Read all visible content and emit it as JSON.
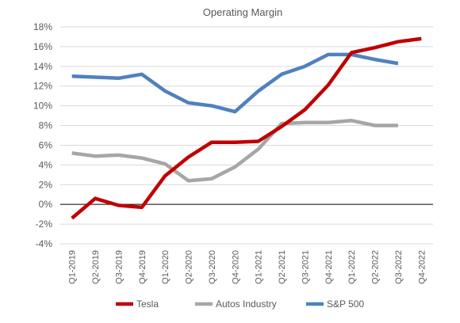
{
  "chart_data": {
    "type": "line",
    "title": "Operating Margin",
    "xlabel": "",
    "ylabel": "",
    "categories": [
      "Q1-2019",
      "Q2-2019",
      "Q3-2019",
      "Q4-2019",
      "Q1-2020",
      "Q2-2020",
      "Q3-2020",
      "Q4-2020",
      "Q1-2021",
      "Q2-2021",
      "Q3-2021",
      "Q4-2021",
      "Q1-2022",
      "Q2-2022",
      "Q3-2022",
      "Q4-2022"
    ],
    "yticks": [
      "-4%",
      "-2%",
      "0%",
      "2%",
      "4%",
      "6%",
      "8%",
      "10%",
      "12%",
      "14%",
      "16%",
      "18%"
    ],
    "ylim": [
      -4,
      18
    ],
    "ytick_step": 2,
    "unit": "%",
    "grid": true,
    "legend_position": "bottom",
    "series": [
      {
        "name": "Tesla",
        "color": "#c00000",
        "values": [
          -1.4,
          0.6,
          -0.1,
          -0.3,
          2.9,
          4.8,
          6.3,
          6.3,
          6.4,
          7.9,
          9.6,
          12.1,
          15.4,
          15.9,
          16.5,
          16.8
        ]
      },
      {
        "name": "Autos Industry",
        "color": "#a6a6a6",
        "values": [
          5.2,
          4.9,
          5.0,
          4.7,
          4.1,
          2.4,
          2.6,
          3.8,
          5.6,
          8.2,
          8.3,
          8.3,
          8.5,
          8.0,
          8.0,
          null
        ]
      },
      {
        "name": "S&P 500",
        "color": "#4f81bd",
        "values": [
          13.0,
          12.9,
          12.8,
          13.2,
          11.5,
          10.3,
          10.0,
          9.4,
          11.5,
          13.2,
          14.0,
          15.2,
          15.2,
          14.7,
          14.3,
          null
        ]
      }
    ]
  }
}
